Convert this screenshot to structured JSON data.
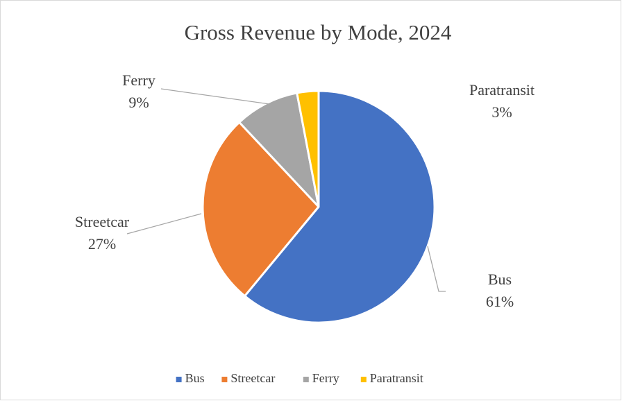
{
  "chart_data": {
    "type": "pie",
    "title": "Gross Revenue by Mode, 2024",
    "categories": [
      "Bus",
      "Streetcar",
      "Ferry",
      "Paratransit"
    ],
    "values": [
      61,
      27,
      9,
      3
    ],
    "value_labels": [
      "61%",
      "27%",
      "9%",
      "3%"
    ],
    "colors": [
      "#4472c4",
      "#ed7d31",
      "#a5a5a5",
      "#ffc000"
    ],
    "legend": "bottom"
  }
}
